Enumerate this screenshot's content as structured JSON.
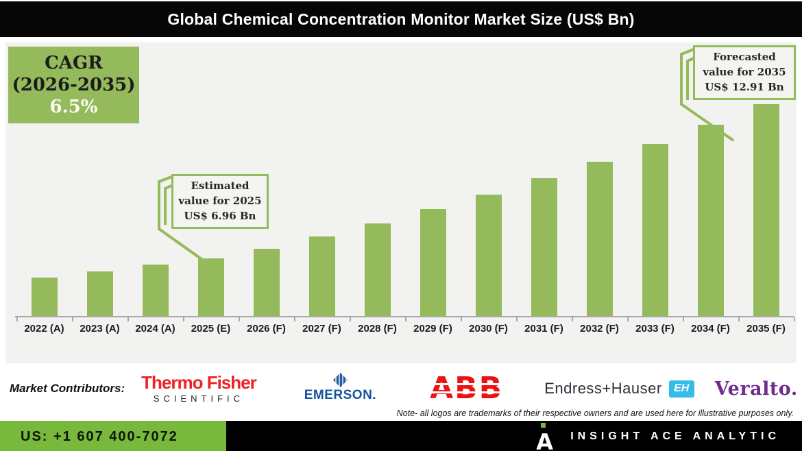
{
  "title": "Global Chemical Concentration Monitor Market Size (US$ Bn)",
  "cagr_box": {
    "line1": "CAGR",
    "line2": "(2026-2035)",
    "line3": "6.5%"
  },
  "callouts": {
    "estimated": {
      "line1": "Estimated",
      "line2": "value for 2025",
      "line3": "US$ 6.96 Bn"
    },
    "forecast": {
      "line1": "Forecasted",
      "line2": "value for 2035",
      "line3": "US$ 12.91 Bn"
    }
  },
  "chart_data": {
    "type": "bar",
    "title": "Global Chemical Concentration Monitor Market Size (US$ Bn)",
    "categories": [
      "2022 (A)",
      "2023 (A)",
      "2024 (A)",
      "2025 (E)",
      "2026 (F)",
      "2027 (F)",
      "2028 (F)",
      "2029 (F)",
      "2030 (F)",
      "2031 (F)",
      "2032 (F)",
      "2033 (F)",
      "2034 (F)",
      "2035 (F)"
    ],
    "values": [
      6.2,
      6.45,
      6.7,
      6.96,
      7.33,
      7.8,
      8.31,
      8.85,
      9.42,
      10.04,
      10.69,
      11.38,
      12.12,
      12.91
    ],
    "unit": "US$ Bn",
    "labeled_points": {
      "2025 (E)": 6.96,
      "2035 (F)": 12.91
    },
    "cagr_2026_2035_pct": 6.5,
    "bar_color": "#94ba5c",
    "ylim": [
      4.7,
      13.2
    ],
    "grid": false,
    "legend": false,
    "xlabel": "",
    "ylabel": ""
  },
  "contributors": {
    "label": "Market Contributors:",
    "logos": [
      {
        "name": "Thermo Fisher Scientific",
        "line1": "Thermo Fisher",
        "line2": "SCIENTIFIC",
        "color": "#ed2224"
      },
      {
        "name": "Emerson",
        "text": "EMERSON.",
        "color": "#15539f"
      },
      {
        "name": "ABB",
        "text": "ABB",
        "color": "#ee1111"
      },
      {
        "name": "Endress+Hauser",
        "text": "Endress+Hauser",
        "badge": "EH",
        "color": "#2f2f3a",
        "badge_color": "#35bce9"
      },
      {
        "name": "Veralto",
        "text": "Veralto.",
        "color": "#6f2c91"
      }
    ],
    "note": "Note- all logos are trademarks of their respective owners and are used here for illustrative purposes only."
  },
  "footer": {
    "phone": "US: +1 607 400-7072",
    "company": "INSIGHT ACE ANALYTIC",
    "accent_green": "#77b83d"
  },
  "colors": {
    "bar_green": "#94ba5c",
    "panel_gray": "#f2f2f0",
    "title_bg": "#060606",
    "footer_green": "#77b83d"
  }
}
